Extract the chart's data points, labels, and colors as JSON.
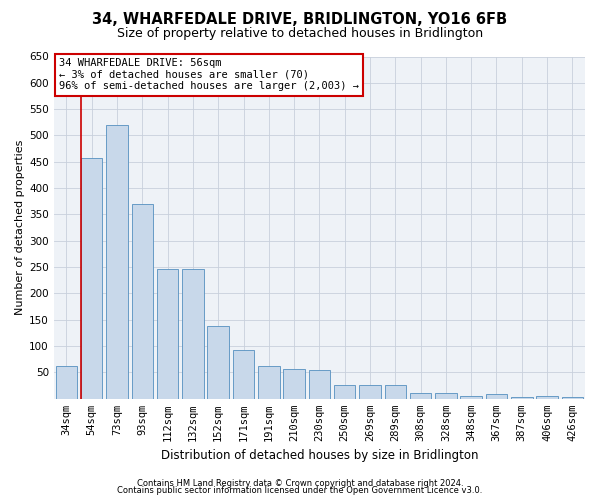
{
  "title": "34, WHARFEDALE DRIVE, BRIDLINGTON, YO16 6FB",
  "subtitle": "Size of property relative to detached houses in Bridlington",
  "xlabel": "Distribution of detached houses by size in Bridlington",
  "ylabel": "Number of detached properties",
  "categories": [
    "34sqm",
    "54sqm",
    "73sqm",
    "93sqm",
    "112sqm",
    "132sqm",
    "152sqm",
    "171sqm",
    "191sqm",
    "210sqm",
    "230sqm",
    "250sqm",
    "269sqm",
    "289sqm",
    "308sqm",
    "328sqm",
    "348sqm",
    "367sqm",
    "387sqm",
    "406sqm",
    "426sqm"
  ],
  "values": [
    62,
    458,
    520,
    370,
    247,
    247,
    138,
    92,
    62,
    57,
    55,
    26,
    26,
    26,
    11,
    11,
    6,
    9,
    4,
    5,
    4
  ],
  "bar_color": "#c8d8ea",
  "bar_edge_color": "#5590c0",
  "annotation_line1": "34 WHARFEDALE DRIVE: 56sqm",
  "annotation_line2": "← 3% of detached houses are smaller (70)",
  "annotation_line3": "96% of semi-detached houses are larger (2,003) →",
  "annotation_box_color": "#ffffff",
  "annotation_box_edge_color": "#cc0000",
  "red_line_x": 0.575,
  "ylim": [
    0,
    650
  ],
  "yticks": [
    0,
    50,
    100,
    150,
    200,
    250,
    300,
    350,
    400,
    450,
    500,
    550,
    600,
    650
  ],
  "footer1": "Contains HM Land Registry data © Crown copyright and database right 2024.",
  "footer2": "Contains public sector information licensed under the Open Government Licence v3.0.",
  "bg_color": "#ffffff",
  "plot_bg_color": "#eef2f7",
  "grid_color": "#c8d0dc",
  "title_fontsize": 10.5,
  "subtitle_fontsize": 9,
  "xlabel_fontsize": 8.5,
  "ylabel_fontsize": 8,
  "tick_fontsize": 7.5,
  "annotation_fontsize": 7.5,
  "footer_fontsize": 6
}
